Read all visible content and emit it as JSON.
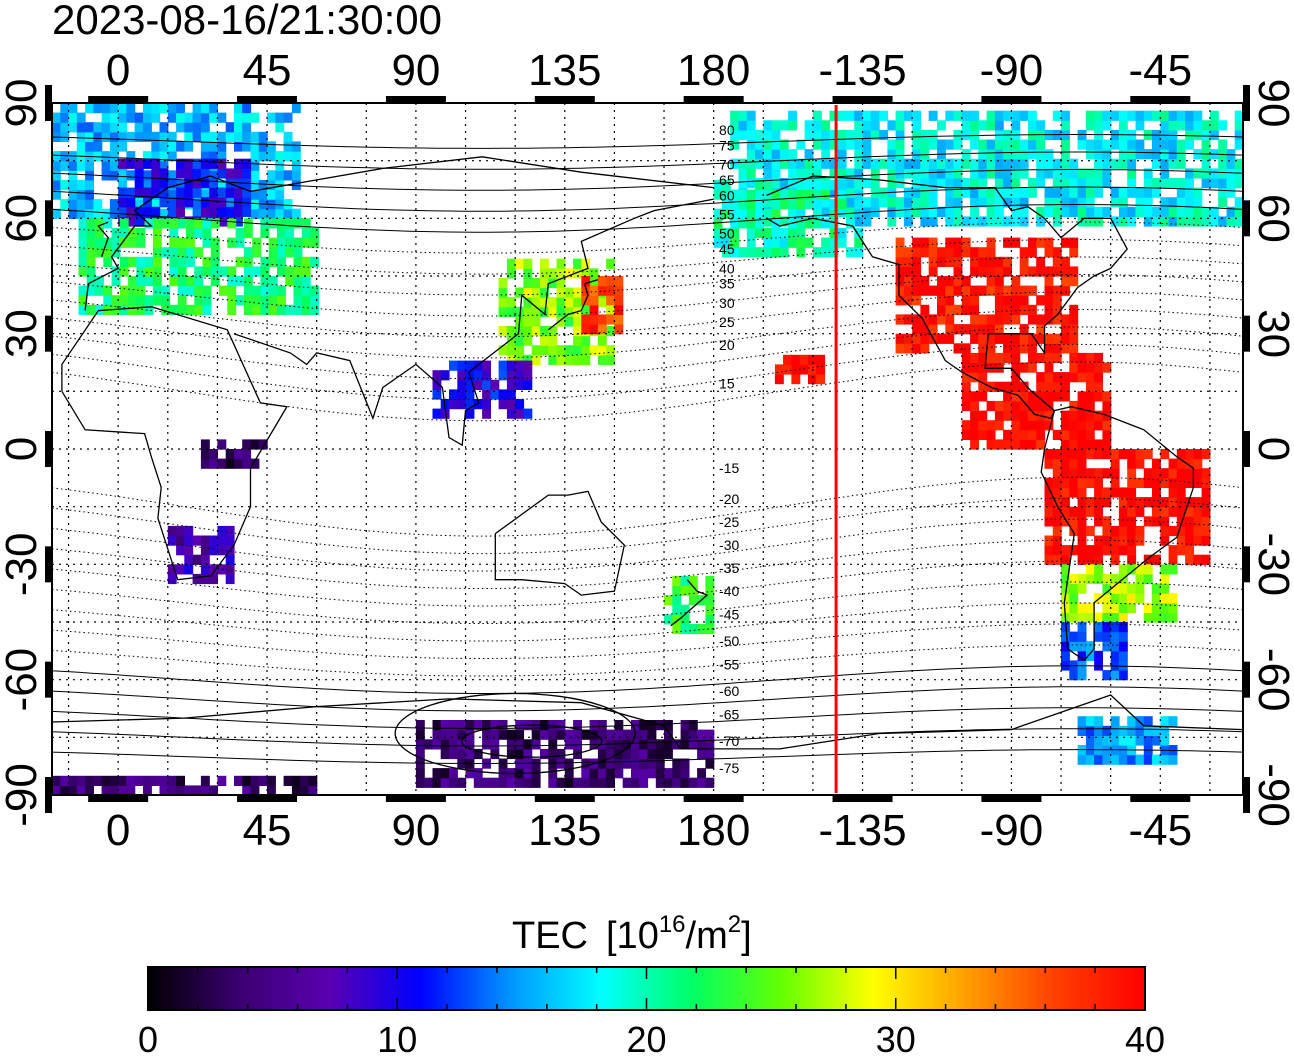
{
  "timestamp": "2023-08-16/21:30:00",
  "map": {
    "lon_ticks": [
      {
        "label": "0",
        "lon": 0
      },
      {
        "label": "45",
        "lon": 45
      },
      {
        "label": "90",
        "lon": 90
      },
      {
        "label": "135",
        "lon": 135
      },
      {
        "label": "180",
        "lon": 180
      },
      {
        "label": "-135",
        "lon": 225
      },
      {
        "label": "-90",
        "lon": 270
      },
      {
        "label": "-45",
        "lon": 315
      }
    ],
    "lat_ticks": [
      {
        "label": "90",
        "lat": 90
      },
      {
        "label": "60",
        "lat": 60
      },
      {
        "label": "30",
        "lat": 30
      },
      {
        "label": "0",
        "lat": 0
      },
      {
        "label": "-30",
        "lat": -30
      },
      {
        "label": "-60",
        "lat": -60
      },
      {
        "label": "-90",
        "lat": -90
      }
    ],
    "lon_range": [
      -20,
      340
    ],
    "lat_range": [
      -90,
      90
    ],
    "grid": "dotted every 15 degrees",
    "terminator_lon": 217,
    "terminator_color": "#ff0000",
    "mag_lat_labels": [
      "80",
      "75",
      "70",
      "65",
      "60",
      "55",
      "50",
      "45",
      "40",
      "35",
      "30",
      "25",
      "20",
      "15",
      "-15",
      "-20",
      "-25",
      "-30",
      "-35",
      "-40",
      "-45",
      "-50",
      "-55",
      "-60",
      "-65",
      "-70",
      "-75"
    ]
  },
  "colorbar": {
    "title": "TEC",
    "unit_prefix": "[10",
    "unit_exp": "16",
    "unit_mid": "/m",
    "unit_exp2": "2",
    "unit_suffix": "]",
    "min": 0,
    "max": 40,
    "tick_labels": [
      {
        "label": "0",
        "value": 0
      },
      {
        "label": "10",
        "value": 10
      },
      {
        "label": "20",
        "value": 20
      },
      {
        "label": "30",
        "value": 30
      },
      {
        "label": "40",
        "value": 40
      }
    ],
    "colors": [
      "#000000",
      "#3a0070",
      "#5a00b0",
      "#0000ff",
      "#0096ff",
      "#00ffff",
      "#00ff64",
      "#64ff00",
      "#ffff00",
      "#ffa000",
      "#ff4000",
      "#ff0000"
    ]
  },
  "chart_data": {
    "type": "heatmap",
    "variable": "TEC",
    "regions": [
      {
        "lon": [
          -20,
          55
        ],
        "lat": [
          60,
          88
        ],
        "tec": 16
      },
      {
        "lon": [
          0,
          40
        ],
        "lat": [
          58,
          75
        ],
        "tec": 10
      },
      {
        "lon": [
          -12,
          60
        ],
        "lat": [
          35,
          58
        ],
        "tec": 22
      },
      {
        "lon": [
          115,
          150
        ],
        "lat": [
          22,
          48
        ],
        "tec": 26
      },
      {
        "lon": [
          140,
          152
        ],
        "lat": [
          30,
          45
        ],
        "tec": 37
      },
      {
        "lon": [
          95,
          125
        ],
        "lat": [
          8,
          22
        ],
        "tec": 10
      },
      {
        "lon": [
          15,
          35
        ],
        "lat": [
          -35,
          -22
        ],
        "tec": 7
      },
      {
        "lon": [
          25,
          45
        ],
        "lat": [
          -5,
          2
        ],
        "tec": 3
      },
      {
        "lon": [
          165,
          180
        ],
        "lat": [
          -48,
          -33
        ],
        "tec": 23
      },
      {
        "lon": [
          185,
          360
        ],
        "lat": [
          58,
          88
        ],
        "tec": 18
      },
      {
        "lon": [
          180,
          225
        ],
        "lat": [
          50,
          70
        ],
        "tec": 20
      },
      {
        "lon": [
          235,
          290
        ],
        "lat": [
          25,
          55
        ],
        "tec": 39
      },
      {
        "lon": [
          255,
          300
        ],
        "lat": [
          0,
          25
        ],
        "tec": 40
      },
      {
        "lon": [
          280,
          330
        ],
        "lat": [
          -30,
          0
        ],
        "tec": 40
      },
      {
        "lon": [
          285,
          320
        ],
        "lat": [
          -45,
          -30
        ],
        "tec": 27
      },
      {
        "lon": [
          285,
          305
        ],
        "lat": [
          -60,
          -45
        ],
        "tec": 13
      },
      {
        "lon": [
          290,
          320
        ],
        "lat": [
          -82,
          -70
        ],
        "tec": 15
      },
      {
        "lon": [
          90,
          180
        ],
        "lat": [
          -88,
          -72
        ],
        "tec": 4
      },
      {
        "lon": [
          -20,
          60
        ],
        "lat": [
          -90,
          -87
        ],
        "tec": 4
      },
      {
        "lon": [
          196,
          212
        ],
        "lat": [
          17,
          24
        ],
        "tec": 40
      }
    ]
  }
}
